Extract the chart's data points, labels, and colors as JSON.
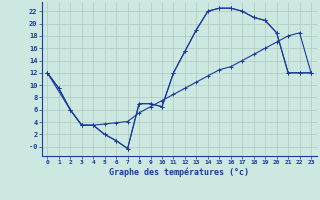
{
  "xlabel": "Graphe des températures (°c)",
  "bg_color": "#cce8e0",
  "line_color": "#1a3a9e",
  "grid_color": "#b0c8c0",
  "xlim": [
    -0.5,
    23.5
  ],
  "ylim": [
    -1.5,
    23.5
  ],
  "xticks": [
    0,
    1,
    2,
    3,
    4,
    5,
    6,
    7,
    8,
    9,
    10,
    11,
    12,
    13,
    14,
    15,
    16,
    17,
    18,
    19,
    20,
    21,
    22,
    23
  ],
  "yticks": [
    0,
    2,
    4,
    6,
    8,
    10,
    12,
    14,
    16,
    18,
    20,
    22
  ],
  "ytick_labels": [
    "-0",
    "2",
    "4",
    "6",
    "8",
    "10",
    "12",
    "14",
    "16",
    "18",
    "20",
    "22"
  ],
  "line1_x": [
    0,
    1,
    2,
    3,
    4,
    5,
    6,
    7,
    8,
    9,
    10,
    11,
    12,
    13,
    14,
    15,
    16,
    17,
    18,
    19,
    20,
    21,
    22,
    23
  ],
  "line1_y": [
    12,
    9.5,
    6,
    3.5,
    3.5,
    3.7,
    3.9,
    4.1,
    5.5,
    6.5,
    7.5,
    8.5,
    9.5,
    10.5,
    11.5,
    12.5,
    13,
    14,
    15,
    16,
    17,
    18,
    18.5,
    12
  ],
  "line2_x": [
    0,
    2,
    3,
    4,
    5,
    6,
    7,
    8,
    9,
    10,
    11,
    12,
    13,
    14,
    15,
    16,
    17,
    18,
    19,
    20,
    21,
    22,
    23
  ],
  "line2_y": [
    12,
    6,
    3.5,
    3.5,
    2,
    1,
    -0.3,
    7,
    7,
    6.5,
    12,
    15.5,
    19,
    22,
    22.5,
    22.5,
    22,
    21,
    20.5,
    18.5,
    12,
    12,
    12
  ],
  "line3_x": [
    0,
    1,
    2,
    3,
    4,
    5,
    6,
    7,
    8,
    9,
    10,
    11,
    12,
    13,
    14,
    15,
    16,
    17,
    18,
    19,
    20,
    21,
    22,
    23
  ],
  "line3_y": [
    12,
    9.5,
    6,
    3.5,
    3.5,
    2,
    1,
    -0.3,
    7,
    7,
    6.5,
    12,
    15.5,
    19,
    22,
    22.5,
    22.5,
    22,
    21,
    20.5,
    18.5,
    12,
    12,
    12
  ]
}
